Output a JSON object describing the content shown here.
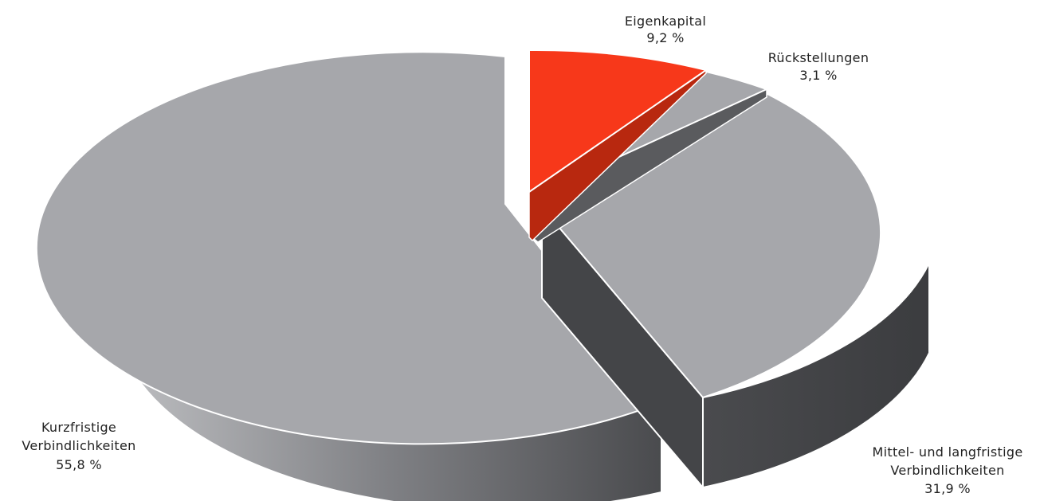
{
  "chart_data": {
    "type": "pie",
    "style": "3d-exploded",
    "slices": [
      {
        "name": "Eigenkapital",
        "value_label": "9,2 %",
        "value": 9.2,
        "color": "#f7381a",
        "exploded": true
      },
      {
        "name": "Rückstellungen",
        "value_label": "3,1 %",
        "value": 3.1,
        "color": "#a6a7ab",
        "exploded": false
      },
      {
        "name": "Mittel- und langfristige Verbindlichkeiten",
        "name_lines": [
          "Mittel- und langfristige",
          "Verbindlichkeiten"
        ],
        "value_label": "31,9 %",
        "value": 31.9,
        "color": "#a6a7ab",
        "exploded": true
      },
      {
        "name": "Kurzfristige Verbindlichkeiten",
        "name_lines": [
          "Kurzfristige",
          "Verbindlichkeiten"
        ],
        "value_label": "55,8 %",
        "value": 55.8,
        "color": "#a6a7ab",
        "exploded": false
      }
    ],
    "colors": {
      "highlight": "#f7381a",
      "top": "#a6a7ab",
      "side_dark": "#444548",
      "side_light": "#b9babd",
      "outline": "#ffffff"
    }
  }
}
